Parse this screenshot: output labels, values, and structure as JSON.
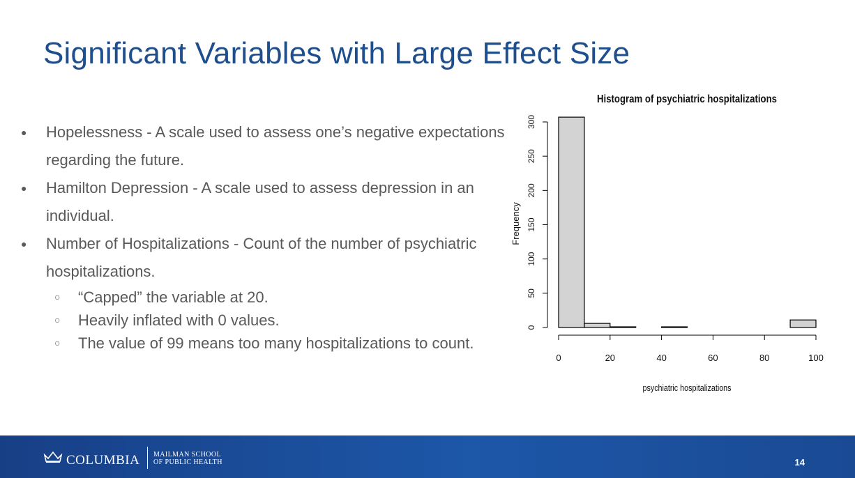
{
  "slide": {
    "title": "Significant Variables with Large Effect Size",
    "bullets": [
      {
        "text": "Hopelessness - A scale used to assess one’s negative expectations regarding the future.",
        "subs": []
      },
      {
        "text": "Hamilton Depression - A scale used to assess depression in an individual.",
        "subs": []
      },
      {
        "text": "Number of Hospitalizations - Count of the number of psychiatric hospitalizations.",
        "subs": [
          "“Capped” the variable at 20.",
          "Heavily inflated with 0 values.",
          "The value of 99 means too many hospitalizations to count."
        ]
      }
    ],
    "bullet_glyph": "●",
    "sub_bullet_glyph": "○",
    "page_number": "14"
  },
  "footer": {
    "logo_text": "COLUMBIA",
    "school_line1": "MAILMAN SCHOOL",
    "school_line2": "OF PUBLIC HEALTH",
    "background_color": "#1d4f9c"
  },
  "chart_data": {
    "type": "bar",
    "title": "Histogram of psychiatric hospitalizations",
    "xlabel": "psychiatric hospitalizations",
    "ylabel": "Frequency",
    "bins": [
      [
        0,
        10
      ],
      [
        10,
        20
      ],
      [
        20,
        30
      ],
      [
        30,
        40
      ],
      [
        40,
        50
      ],
      [
        50,
        60
      ],
      [
        60,
        70
      ],
      [
        70,
        80
      ],
      [
        80,
        90
      ],
      [
        90,
        100
      ]
    ],
    "values": [
      307,
      6,
      1,
      0,
      1,
      0,
      0,
      0,
      0,
      11
    ],
    "xlim": [
      0,
      100
    ],
    "ylim": [
      0,
      300
    ],
    "xticks": [
      0,
      20,
      40,
      60,
      80,
      100
    ],
    "yticks": [
      0,
      50,
      100,
      150,
      200,
      250,
      300
    ],
    "bar_fill": "#d3d3d3",
    "grid": false
  }
}
